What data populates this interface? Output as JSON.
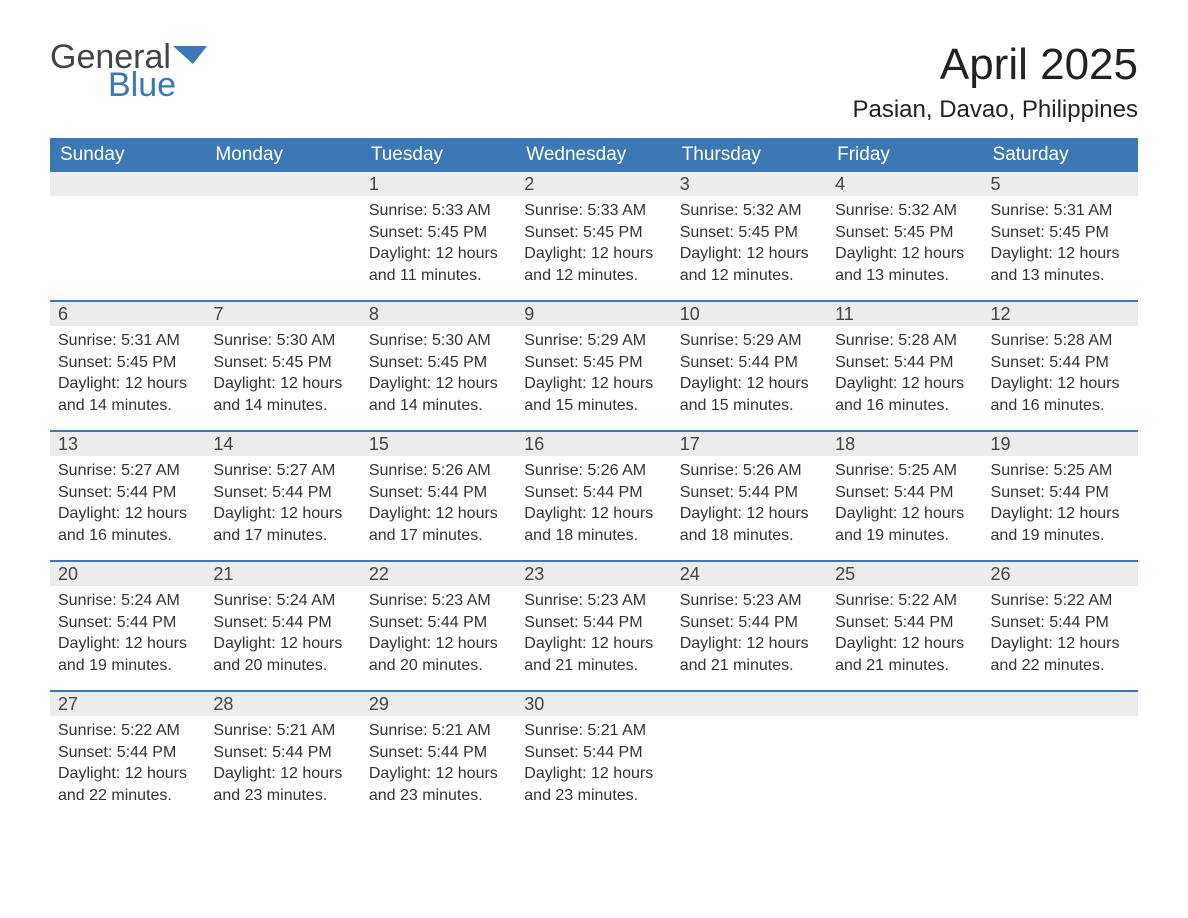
{
  "brand": {
    "general": "General",
    "blue": "Blue",
    "flag_color": "#3b78b5"
  },
  "title": "April 2025",
  "location": "Pasian, Davao, Philippines",
  "theme": {
    "header_bg": "#3b78b5",
    "header_text": "#ffffff",
    "daynum_bg": "#ececec",
    "week_border": "#3b78b5",
    "body_text": "#333333",
    "page_bg": "#ffffff"
  },
  "day_headers": [
    "Sunday",
    "Monday",
    "Tuesday",
    "Wednesday",
    "Thursday",
    "Friday",
    "Saturday"
  ],
  "labels": {
    "sunrise": "Sunrise: ",
    "sunset": "Sunset: ",
    "daylight": "Daylight: "
  },
  "weeks": [
    [
      null,
      null,
      {
        "n": "1",
        "sr": "5:33 AM",
        "ss": "5:45 PM",
        "dl": "12 hours and 11 minutes."
      },
      {
        "n": "2",
        "sr": "5:33 AM",
        "ss": "5:45 PM",
        "dl": "12 hours and 12 minutes."
      },
      {
        "n": "3",
        "sr": "5:32 AM",
        "ss": "5:45 PM",
        "dl": "12 hours and 12 minutes."
      },
      {
        "n": "4",
        "sr": "5:32 AM",
        "ss": "5:45 PM",
        "dl": "12 hours and 13 minutes."
      },
      {
        "n": "5",
        "sr": "5:31 AM",
        "ss": "5:45 PM",
        "dl": "12 hours and 13 minutes."
      }
    ],
    [
      {
        "n": "6",
        "sr": "5:31 AM",
        "ss": "5:45 PM",
        "dl": "12 hours and 14 minutes."
      },
      {
        "n": "7",
        "sr": "5:30 AM",
        "ss": "5:45 PM",
        "dl": "12 hours and 14 minutes."
      },
      {
        "n": "8",
        "sr": "5:30 AM",
        "ss": "5:45 PM",
        "dl": "12 hours and 14 minutes."
      },
      {
        "n": "9",
        "sr": "5:29 AM",
        "ss": "5:45 PM",
        "dl": "12 hours and 15 minutes."
      },
      {
        "n": "10",
        "sr": "5:29 AM",
        "ss": "5:44 PM",
        "dl": "12 hours and 15 minutes."
      },
      {
        "n": "11",
        "sr": "5:28 AM",
        "ss": "5:44 PM",
        "dl": "12 hours and 16 minutes."
      },
      {
        "n": "12",
        "sr": "5:28 AM",
        "ss": "5:44 PM",
        "dl": "12 hours and 16 minutes."
      }
    ],
    [
      {
        "n": "13",
        "sr": "5:27 AM",
        "ss": "5:44 PM",
        "dl": "12 hours and 16 minutes."
      },
      {
        "n": "14",
        "sr": "5:27 AM",
        "ss": "5:44 PM",
        "dl": "12 hours and 17 minutes."
      },
      {
        "n": "15",
        "sr": "5:26 AM",
        "ss": "5:44 PM",
        "dl": "12 hours and 17 minutes."
      },
      {
        "n": "16",
        "sr": "5:26 AM",
        "ss": "5:44 PM",
        "dl": "12 hours and 18 minutes."
      },
      {
        "n": "17",
        "sr": "5:26 AM",
        "ss": "5:44 PM",
        "dl": "12 hours and 18 minutes."
      },
      {
        "n": "18",
        "sr": "5:25 AM",
        "ss": "5:44 PM",
        "dl": "12 hours and 19 minutes."
      },
      {
        "n": "19",
        "sr": "5:25 AM",
        "ss": "5:44 PM",
        "dl": "12 hours and 19 minutes."
      }
    ],
    [
      {
        "n": "20",
        "sr": "5:24 AM",
        "ss": "5:44 PM",
        "dl": "12 hours and 19 minutes."
      },
      {
        "n": "21",
        "sr": "5:24 AM",
        "ss": "5:44 PM",
        "dl": "12 hours and 20 minutes."
      },
      {
        "n": "22",
        "sr": "5:23 AM",
        "ss": "5:44 PM",
        "dl": "12 hours and 20 minutes."
      },
      {
        "n": "23",
        "sr": "5:23 AM",
        "ss": "5:44 PM",
        "dl": "12 hours and 21 minutes."
      },
      {
        "n": "24",
        "sr": "5:23 AM",
        "ss": "5:44 PM",
        "dl": "12 hours and 21 minutes."
      },
      {
        "n": "25",
        "sr": "5:22 AM",
        "ss": "5:44 PM",
        "dl": "12 hours and 21 minutes."
      },
      {
        "n": "26",
        "sr": "5:22 AM",
        "ss": "5:44 PM",
        "dl": "12 hours and 22 minutes."
      }
    ],
    [
      {
        "n": "27",
        "sr": "5:22 AM",
        "ss": "5:44 PM",
        "dl": "12 hours and 22 minutes."
      },
      {
        "n": "28",
        "sr": "5:21 AM",
        "ss": "5:44 PM",
        "dl": "12 hours and 23 minutes."
      },
      {
        "n": "29",
        "sr": "5:21 AM",
        "ss": "5:44 PM",
        "dl": "12 hours and 23 minutes."
      },
      {
        "n": "30",
        "sr": "5:21 AM",
        "ss": "5:44 PM",
        "dl": "12 hours and 23 minutes."
      },
      null,
      null,
      null
    ]
  ]
}
